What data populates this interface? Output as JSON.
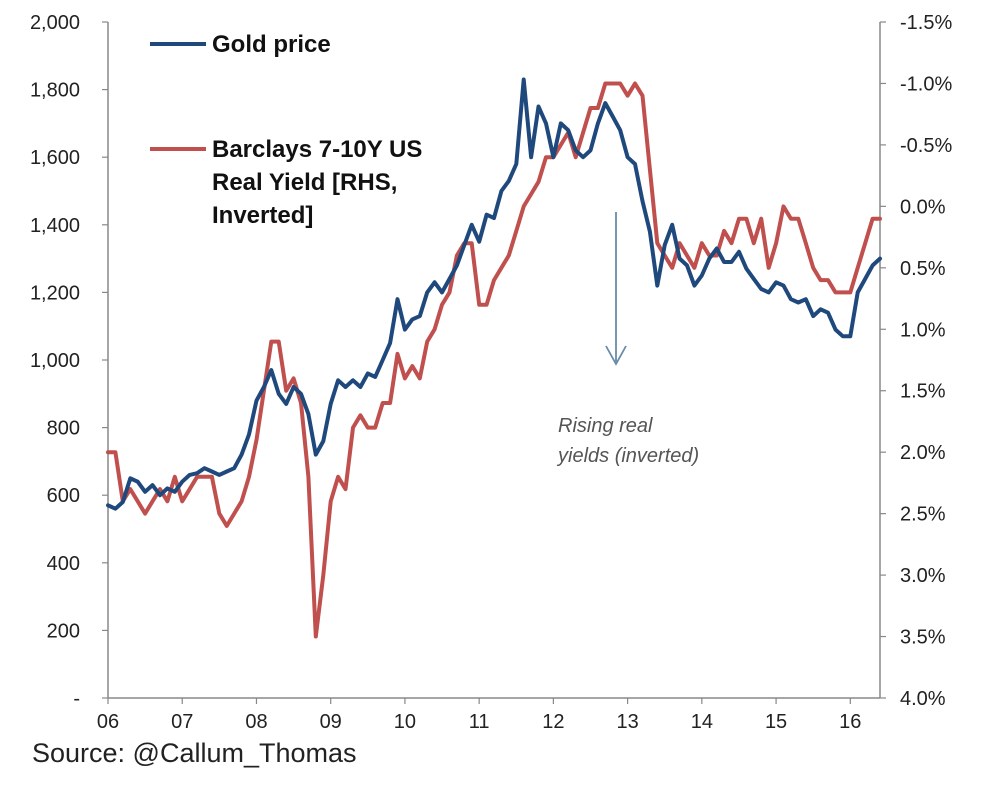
{
  "chart_data": {
    "type": "line",
    "title": "",
    "source": "Source: @Callum_Thomas",
    "colors": {
      "gold": "#1f497d",
      "yield": "#c0504d",
      "axis": "#888888",
      "arrow": "#6a8ca8"
    },
    "x_range": [
      2006,
      2016.4
    ],
    "x_ticks": [
      {
        "v": 2006,
        "label": "06"
      },
      {
        "v": 2007,
        "label": "07"
      },
      {
        "v": 2008,
        "label": "08"
      },
      {
        "v": 2009,
        "label": "09"
      },
      {
        "v": 2010,
        "label": "10"
      },
      {
        "v": 2011,
        "label": "11"
      },
      {
        "v": 2012,
        "label": "12"
      },
      {
        "v": 2013,
        "label": "13"
      },
      {
        "v": 2014,
        "label": "14"
      },
      {
        "v": 2015,
        "label": "15"
      },
      {
        "v": 2016,
        "label": "16"
      }
    ],
    "left_axis": {
      "range": [
        0,
        2000
      ],
      "ticks": [
        {
          "v": 2000,
          "label": "2,000"
        },
        {
          "v": 1800,
          "label": "1,800"
        },
        {
          "v": 1600,
          "label": "1,600"
        },
        {
          "v": 1400,
          "label": "1,400"
        },
        {
          "v": 1200,
          "label": "1,200"
        },
        {
          "v": 1000,
          "label": "1,000"
        },
        {
          "v": 800,
          "label": "800"
        },
        {
          "v": 600,
          "label": "600"
        },
        {
          "v": 400,
          "label": "400"
        },
        {
          "v": 200,
          "label": "200"
        },
        {
          "v": 0,
          "label": "-"
        }
      ]
    },
    "right_axis": {
      "range": [
        4.0,
        -1.5
      ],
      "inverted": true,
      "ticks": [
        {
          "v": -1.5,
          "label": "-1.5%"
        },
        {
          "v": -1.0,
          "label": "-1.0%"
        },
        {
          "v": -0.5,
          "label": "-0.5%"
        },
        {
          "v": 0.0,
          "label": "0.0%"
        },
        {
          "v": 0.5,
          "label": "0.5%"
        },
        {
          "v": 1.0,
          "label": "1.0%"
        },
        {
          "v": 1.5,
          "label": "1.5%"
        },
        {
          "v": 2.0,
          "label": "2.0%"
        },
        {
          "v": 2.5,
          "label": "2.5%"
        },
        {
          "v": 3.0,
          "label": "3.0%"
        },
        {
          "v": 3.5,
          "label": "3.5%"
        },
        {
          "v": 4.0,
          "label": "4.0%"
        }
      ]
    },
    "legend": {
      "gold_label": "Gold price",
      "yield_label_lines": [
        "Barclays 7-10Y US",
        "Real Yield [RHS,",
        "Inverted]"
      ]
    },
    "annotation": {
      "lines": [
        "Rising real",
        "yields (inverted)"
      ]
    },
    "series": [
      {
        "name": "Gold price",
        "axis": "left",
        "points": [
          [
            2006.0,
            570
          ],
          [
            2006.1,
            560
          ],
          [
            2006.2,
            580
          ],
          [
            2006.3,
            650
          ],
          [
            2006.4,
            640
          ],
          [
            2006.5,
            610
          ],
          [
            2006.6,
            630
          ],
          [
            2006.7,
            600
          ],
          [
            2006.8,
            620
          ],
          [
            2006.9,
            610
          ],
          [
            2007.0,
            640
          ],
          [
            2007.1,
            660
          ],
          [
            2007.2,
            665
          ],
          [
            2007.3,
            680
          ],
          [
            2007.4,
            670
          ],
          [
            2007.5,
            660
          ],
          [
            2007.6,
            670
          ],
          [
            2007.7,
            680
          ],
          [
            2007.8,
            720
          ],
          [
            2007.9,
            780
          ],
          [
            2008.0,
            880
          ],
          [
            2008.1,
            920
          ],
          [
            2008.2,
            970
          ],
          [
            2008.3,
            900
          ],
          [
            2008.4,
            870
          ],
          [
            2008.5,
            920
          ],
          [
            2008.6,
            900
          ],
          [
            2008.7,
            840
          ],
          [
            2008.8,
            720
          ],
          [
            2008.9,
            760
          ],
          [
            2009.0,
            870
          ],
          [
            2009.1,
            940
          ],
          [
            2009.2,
            920
          ],
          [
            2009.3,
            940
          ],
          [
            2009.4,
            920
          ],
          [
            2009.5,
            960
          ],
          [
            2009.6,
            950
          ],
          [
            2009.7,
            1000
          ],
          [
            2009.8,
            1050
          ],
          [
            2009.9,
            1180
          ],
          [
            2010.0,
            1090
          ],
          [
            2010.1,
            1120
          ],
          [
            2010.2,
            1130
          ],
          [
            2010.3,
            1200
          ],
          [
            2010.4,
            1230
          ],
          [
            2010.5,
            1200
          ],
          [
            2010.6,
            1240
          ],
          [
            2010.7,
            1280
          ],
          [
            2010.8,
            1340
          ],
          [
            2010.9,
            1400
          ],
          [
            2011.0,
            1350
          ],
          [
            2011.1,
            1430
          ],
          [
            2011.2,
            1420
          ],
          [
            2011.3,
            1500
          ],
          [
            2011.4,
            1530
          ],
          [
            2011.5,
            1580
          ],
          [
            2011.6,
            1830
          ],
          [
            2011.7,
            1600
          ],
          [
            2011.8,
            1750
          ],
          [
            2011.9,
            1700
          ],
          [
            2012.0,
            1600
          ],
          [
            2012.1,
            1700
          ],
          [
            2012.2,
            1680
          ],
          [
            2012.3,
            1620
          ],
          [
            2012.4,
            1600
          ],
          [
            2012.5,
            1620
          ],
          [
            2012.6,
            1700
          ],
          [
            2012.7,
            1760
          ],
          [
            2012.8,
            1720
          ],
          [
            2012.9,
            1680
          ],
          [
            2013.0,
            1600
          ],
          [
            2013.1,
            1580
          ],
          [
            2013.2,
            1470
          ],
          [
            2013.3,
            1380
          ],
          [
            2013.4,
            1220
          ],
          [
            2013.5,
            1340
          ],
          [
            2013.6,
            1400
          ],
          [
            2013.7,
            1300
          ],
          [
            2013.8,
            1280
          ],
          [
            2013.9,
            1220
          ],
          [
            2014.0,
            1250
          ],
          [
            2014.1,
            1300
          ],
          [
            2014.2,
            1330
          ],
          [
            2014.3,
            1290
          ],
          [
            2014.4,
            1290
          ],
          [
            2014.5,
            1320
          ],
          [
            2014.6,
            1270
          ],
          [
            2014.7,
            1240
          ],
          [
            2014.8,
            1210
          ],
          [
            2014.9,
            1200
          ],
          [
            2015.0,
            1230
          ],
          [
            2015.1,
            1220
          ],
          [
            2015.2,
            1180
          ],
          [
            2015.3,
            1170
          ],
          [
            2015.4,
            1180
          ],
          [
            2015.5,
            1130
          ],
          [
            2015.6,
            1150
          ],
          [
            2015.7,
            1140
          ],
          [
            2015.8,
            1090
          ],
          [
            2015.9,
            1070
          ],
          [
            2016.0,
            1070
          ],
          [
            2016.1,
            1200
          ],
          [
            2016.2,
            1240
          ],
          [
            2016.3,
            1280
          ],
          [
            2016.4,
            1300
          ]
        ]
      },
      {
        "name": "Barclays 7-10Y US Real Yield [RHS, Inverted]",
        "axis": "right",
        "points": [
          [
            2006.0,
            2.0
          ],
          [
            2006.1,
            2.0
          ],
          [
            2006.2,
            2.4
          ],
          [
            2006.3,
            2.3
          ],
          [
            2006.4,
            2.4
          ],
          [
            2006.5,
            2.5
          ],
          [
            2006.6,
            2.4
          ],
          [
            2006.7,
            2.3
          ],
          [
            2006.8,
            2.4
          ],
          [
            2006.9,
            2.2
          ],
          [
            2007.0,
            2.4
          ],
          [
            2007.1,
            2.3
          ],
          [
            2007.2,
            2.2
          ],
          [
            2007.3,
            2.2
          ],
          [
            2007.4,
            2.2
          ],
          [
            2007.5,
            2.5
          ],
          [
            2007.6,
            2.6
          ],
          [
            2007.7,
            2.5
          ],
          [
            2007.8,
            2.4
          ],
          [
            2007.9,
            2.2
          ],
          [
            2008.0,
            1.9
          ],
          [
            2008.1,
            1.5
          ],
          [
            2008.2,
            1.1
          ],
          [
            2008.3,
            1.1
          ],
          [
            2008.4,
            1.5
          ],
          [
            2008.5,
            1.4
          ],
          [
            2008.6,
            1.6
          ],
          [
            2008.7,
            2.2
          ],
          [
            2008.8,
            3.5
          ],
          [
            2008.9,
            3.0
          ],
          [
            2009.0,
            2.4
          ],
          [
            2009.1,
            2.2
          ],
          [
            2009.2,
            2.3
          ],
          [
            2009.3,
            1.8
          ],
          [
            2009.4,
            1.7
          ],
          [
            2009.5,
            1.8
          ],
          [
            2009.6,
            1.8
          ],
          [
            2009.7,
            1.6
          ],
          [
            2009.8,
            1.6
          ],
          [
            2009.9,
            1.2
          ],
          [
            2010.0,
            1.4
          ],
          [
            2010.1,
            1.3
          ],
          [
            2010.2,
            1.4
          ],
          [
            2010.3,
            1.1
          ],
          [
            2010.4,
            1.0
          ],
          [
            2010.5,
            0.8
          ],
          [
            2010.6,
            0.7
          ],
          [
            2010.7,
            0.4
          ],
          [
            2010.8,
            0.3
          ],
          [
            2010.9,
            0.3
          ],
          [
            2011.0,
            0.8
          ],
          [
            2011.1,
            0.8
          ],
          [
            2011.2,
            0.6
          ],
          [
            2011.3,
            0.5
          ],
          [
            2011.4,
            0.4
          ],
          [
            2011.5,
            0.2
          ],
          [
            2011.6,
            0.0
          ],
          [
            2011.7,
            -0.1
          ],
          [
            2011.8,
            -0.2
          ],
          [
            2011.9,
            -0.4
          ],
          [
            2012.0,
            -0.4
          ],
          [
            2012.1,
            -0.5
          ],
          [
            2012.2,
            -0.6
          ],
          [
            2012.3,
            -0.4
          ],
          [
            2012.4,
            -0.6
          ],
          [
            2012.5,
            -0.8
          ],
          [
            2012.6,
            -0.8
          ],
          [
            2012.7,
            -1.0
          ],
          [
            2012.8,
            -1.0
          ],
          [
            2012.9,
            -1.0
          ],
          [
            2013.0,
            -0.9
          ],
          [
            2013.1,
            -1.0
          ],
          [
            2013.2,
            -0.9
          ],
          [
            2013.3,
            -0.3
          ],
          [
            2013.4,
            0.3
          ],
          [
            2013.5,
            0.4
          ],
          [
            2013.6,
            0.5
          ],
          [
            2013.7,
            0.3
          ],
          [
            2013.8,
            0.4
          ],
          [
            2013.9,
            0.5
          ],
          [
            2014.0,
            0.3
          ],
          [
            2014.1,
            0.4
          ],
          [
            2014.2,
            0.4
          ],
          [
            2014.3,
            0.2
          ],
          [
            2014.4,
            0.3
          ],
          [
            2014.5,
            0.1
          ],
          [
            2014.6,
            0.1
          ],
          [
            2014.7,
            0.3
          ],
          [
            2014.8,
            0.1
          ],
          [
            2014.9,
            0.5
          ],
          [
            2015.0,
            0.3
          ],
          [
            2015.1,
            0.0
          ],
          [
            2015.2,
            0.1
          ],
          [
            2015.3,
            0.1
          ],
          [
            2015.4,
            0.3
          ],
          [
            2015.5,
            0.5
          ],
          [
            2015.6,
            0.6
          ],
          [
            2015.7,
            0.6
          ],
          [
            2015.8,
            0.7
          ],
          [
            2015.9,
            0.7
          ],
          [
            2016.0,
            0.7
          ],
          [
            2016.1,
            0.5
          ],
          [
            2016.2,
            0.3
          ],
          [
            2016.3,
            0.1
          ],
          [
            2016.4,
            0.1
          ]
        ]
      }
    ]
  }
}
